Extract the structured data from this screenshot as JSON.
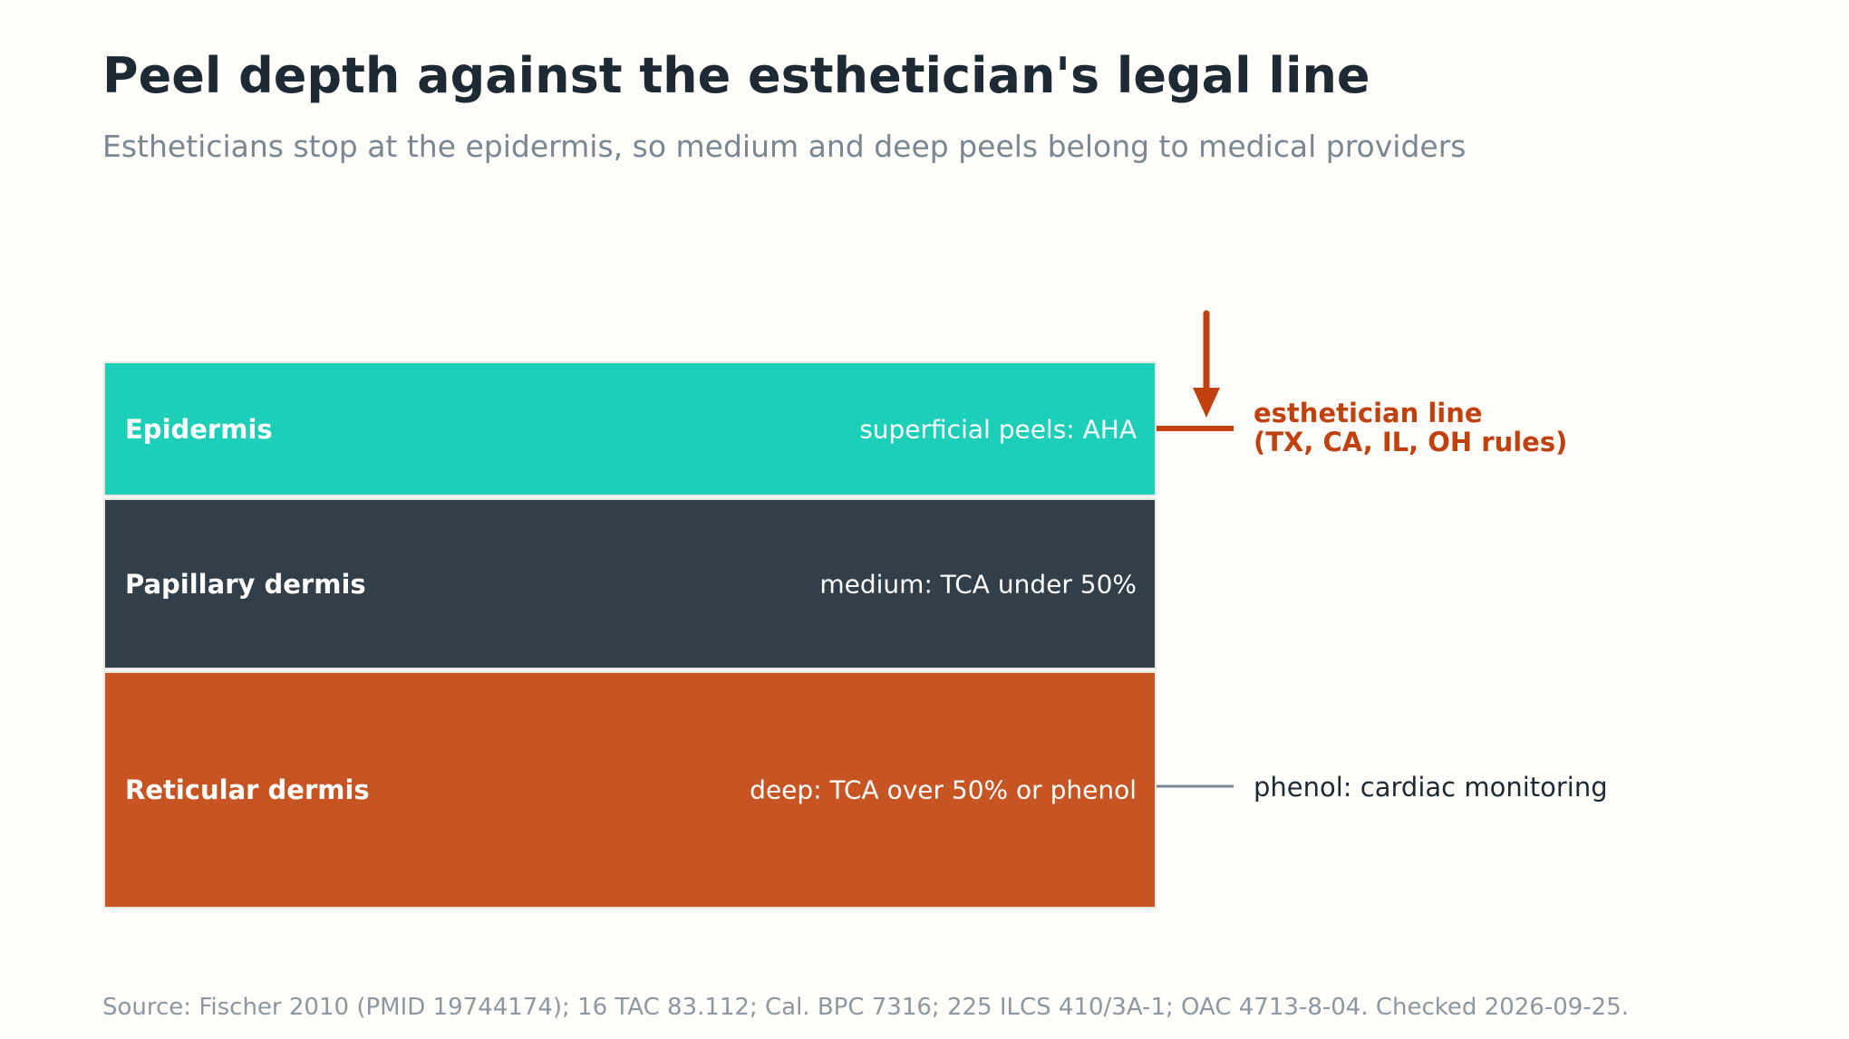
{
  "title": "Peel depth against the esthetician's legal line",
  "subtitle": "Estheticians stop at the epidermis, so medium and deep peels belong to medical providers",
  "layers": [
    {
      "name": "Epidermis",
      "peel": "superficial peels: AHA",
      "color": "#1dcfb9"
    },
    {
      "name": "Papillary dermis",
      "peel": "medium: TCA under 50%",
      "color": "#323f48"
    },
    {
      "name": "Reticular dermis",
      "peel": "deep: TCA over 50% or phenol",
      "color": "#c75523"
    }
  ],
  "annotations": {
    "legal_line": {
      "line1": "esthetician line",
      "line2": "(TX, CA, IL, OH rules)",
      "color": "#c0400e"
    },
    "phenol": {
      "text": "phenol: cardiac monitoring",
      "color": "#7a8690"
    }
  },
  "source": "Source: Fischer 2010 (PMID 19744174); 16 TAC 83.112; Cal. BPC 7316; 225 ILCS 410/3A-1; OAC 4713-8-04. Checked 2026-09-25."
}
